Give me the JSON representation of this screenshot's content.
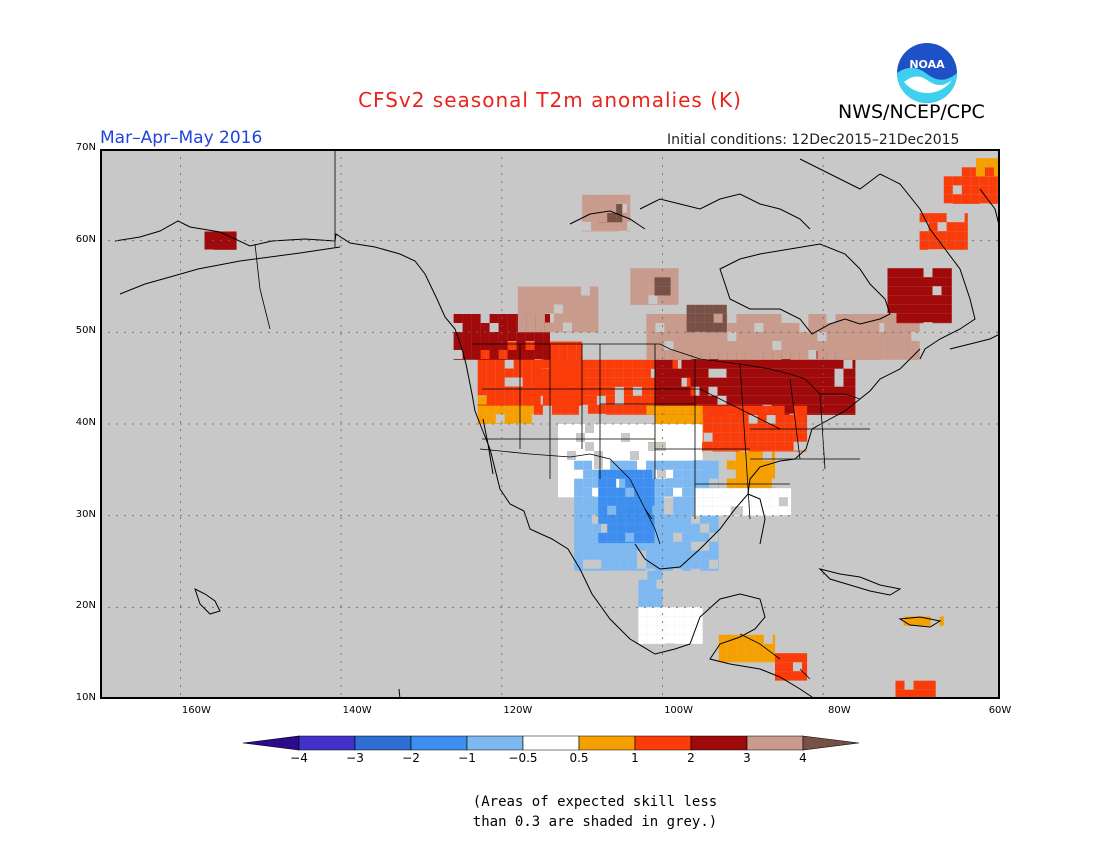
{
  "header": {
    "title": "CFSv2 seasonal T2m anomalies (K)",
    "agency": "NWS/NCEP/CPC",
    "logo_text": "NOAA",
    "season": "Mar–Apr–May 2016",
    "initial_conditions": "Initial conditions: 12Dec2015–21Dec2015"
  },
  "map": {
    "lon_range": [
      -172,
      -60
    ],
    "lat_range": [
      10,
      70
    ],
    "background_color": "#c8c8c8",
    "lat_labels": [
      {
        "lat": 70,
        "text": "70N"
      },
      {
        "lat": 60,
        "text": "60N"
      },
      {
        "lat": 50,
        "text": "50N"
      },
      {
        "lat": 40,
        "text": "40N"
      },
      {
        "lat": 30,
        "text": "30N"
      },
      {
        "lat": 20,
        "text": "20N"
      },
      {
        "lat": 10,
        "text": "10N"
      }
    ],
    "lon_labels": [
      {
        "lon": -160,
        "text": "160W"
      },
      {
        "lon": -140,
        "text": "140W"
      },
      {
        "lon": -120,
        "text": "120W"
      },
      {
        "lon": -100,
        "text": "100W"
      },
      {
        "lon": -80,
        "text": "80W"
      },
      {
        "lon": -60,
        "text": "60W"
      }
    ],
    "anomaly_regions": [
      {
        "category": "0.5 to 1",
        "color": "#f5a000",
        "lon": [
          -125,
          -118
        ],
        "lat": [
          40,
          44
        ]
      },
      {
        "category": "1 to 2",
        "color": "#fa3c0a",
        "lon": [
          -125,
          -112
        ],
        "lat": [
          42,
          49
        ]
      },
      {
        "category": "2 to 3",
        "color": "#a00a0a",
        "lon": [
          -128,
          -116
        ],
        "lat": [
          47,
          52
        ]
      },
      {
        "category": "1 to 2",
        "color": "#fa3c0a",
        "lon": [
          -118,
          -98
        ],
        "lat": [
          41,
          47
        ]
      },
      {
        "category": "2 to 3",
        "color": "#a00a0a",
        "lon": [
          -103,
          -78
        ],
        "lat": [
          41,
          48
        ]
      },
      {
        "category": "1 to 2",
        "color": "#fa3c0a",
        "lon": [
          -98,
          -84
        ],
        "lat": [
          37,
          42
        ]
      },
      {
        "category": "0.5 to 1",
        "color": "#f5a000",
        "lon": [
          -94,
          -88
        ],
        "lat": [
          33,
          37
        ]
      },
      {
        "category": "0.5 to 1",
        "color": "#f5a000",
        "lon": [
          -104,
          -97
        ],
        "lat": [
          38,
          42
        ]
      },
      {
        "category": "4 and above",
        "color": "#c89b8c",
        "lon": [
          -104,
          -75
        ],
        "lat": [
          47,
          52
        ]
      },
      {
        "category": "4 and above",
        "color": "#c89b8c",
        "lon": [
          -120,
          -110
        ],
        "lat": [
          50,
          55
        ]
      },
      {
        "category": "4 and above",
        "color": "#c89b8c",
        "lon": [
          -106,
          -100
        ],
        "lat": [
          53,
          57
        ]
      },
      {
        "category": "4 and above",
        "color": "#c89b8c",
        "lon": [
          -112,
          -106
        ],
        "lat": [
          61,
          65
        ]
      },
      {
        "category": "above 4",
        "color": "#785046",
        "lon": [
          -110,
          -107
        ],
        "lat": [
          62,
          64
        ]
      },
      {
        "category": "above 4",
        "color": "#785046",
        "lon": [
          -99,
          -94
        ],
        "lat": [
          50,
          53
        ]
      },
      {
        "category": "above 4",
        "color": "#785046",
        "lon": [
          -103,
          -101
        ],
        "lat": [
          54,
          56
        ]
      },
      {
        "category": "4 and above",
        "color": "#c89b8c",
        "lon": [
          -80,
          -70
        ],
        "lat": [
          47,
          52
        ]
      },
      {
        "category": "2 to 3",
        "color": "#a00a0a",
        "lon": [
          -74,
          -66
        ],
        "lat": [
          51,
          57
        ]
      },
      {
        "category": "1 to 2",
        "color": "#fa3c0a",
        "lon": [
          -70,
          -64
        ],
        "lat": [
          59,
          63
        ]
      },
      {
        "category": "1 to 2",
        "color": "#fa3c0a",
        "lon": [
          -67,
          -58
        ],
        "lat": [
          64,
          68
        ]
      },
      {
        "category": "0.5 to 1",
        "color": "#f5a000",
        "lon": [
          -63,
          -58
        ],
        "lat": [
          67,
          69
        ]
      },
      {
        "category": "2 to 3",
        "color": "#a00a0a",
        "lon": [
          -159,
          -155
        ],
        "lat": [
          59,
          61
        ]
      },
      {
        "category": "-0.5 to 0.5",
        "color": "#ffffff",
        "lon": [
          -115,
          -97
        ],
        "lat": [
          32,
          40
        ]
      },
      {
        "category": "-1 to -0.5",
        "color": "#7eb8f0",
        "lon": [
          -113,
          -95
        ],
        "lat": [
          24,
          36
        ]
      },
      {
        "category": "-2 to -1",
        "color": "#3e8ef0",
        "lon": [
          -110,
          -103
        ],
        "lat": [
          27,
          35
        ]
      },
      {
        "category": "-1 to -0.5",
        "color": "#7eb8f0",
        "lon": [
          -105,
          -102
        ],
        "lat": [
          20,
          24
        ]
      },
      {
        "category": "-0.5 to 0.5",
        "color": "#ffffff",
        "lon": [
          -105,
          -97
        ],
        "lat": [
          16,
          20
        ]
      },
      {
        "category": "-0.5 to 0.5",
        "color": "#ffffff",
        "lon": [
          -98,
          -92
        ],
        "lat": [
          30,
          33
        ]
      },
      {
        "category": "-0.5 to 0.5",
        "color": "#ffffff",
        "lon": [
          -92,
          -86
        ],
        "lat": [
          30,
          33
        ]
      },
      {
        "category": "0.5 to 1",
        "color": "#f5a000",
        "lon": [
          -95,
          -88
        ],
        "lat": [
          14,
          17
        ]
      },
      {
        "category": "1 to 2",
        "color": "#fa3c0a",
        "lon": [
          -88,
          -84
        ],
        "lat": [
          12,
          15
        ]
      },
      {
        "category": "0.5 to 1",
        "color": "#f5a000",
        "lon": [
          -72,
          -67
        ],
        "lat": [
          18,
          19
        ]
      },
      {
        "category": "1 to 2",
        "color": "#fa3c0a",
        "lon": [
          -73,
          -68
        ],
        "lat": [
          10,
          12
        ]
      }
    ]
  },
  "colorbar": {
    "colors": [
      "#2a0c8c",
      "#4032c8",
      "#2e6ed2",
      "#3e8ef0",
      "#7eb8f0",
      "#ffffff",
      "#f5a000",
      "#fa3c0a",
      "#a00a0a",
      "#c89b8c",
      "#785046"
    ],
    "labels": [
      "−4",
      "−3",
      "−2",
      "−1",
      "−0.5",
      "0.5",
      "1",
      "2",
      "3",
      "4"
    ]
  },
  "note": {
    "line1": "(Areas of expected skill less",
    "line2": "than 0.3 are shaded in grey.)"
  }
}
